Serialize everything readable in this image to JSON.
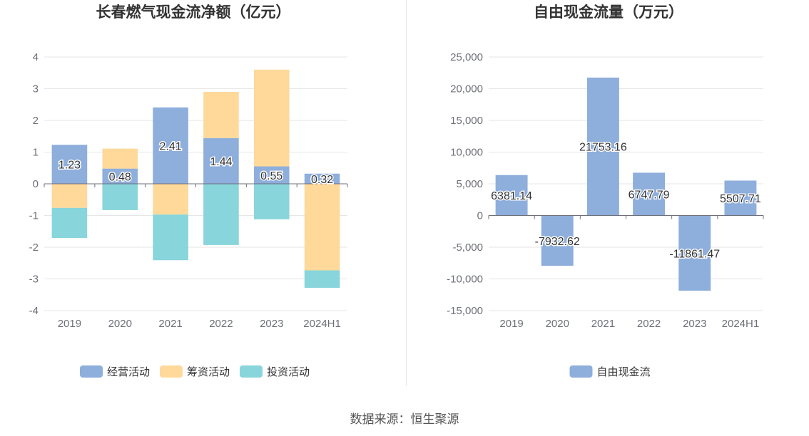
{
  "colors": {
    "operating": "#8eaedc",
    "financing": "#fed99a",
    "investing": "#88d5db",
    "free_cf": "#8eaedc",
    "grid": "#e6e6e6",
    "axis": "#6e7079",
    "tick_text": "#6e7079",
    "title": "#333333"
  },
  "chart_data": [
    {
      "type": "bar",
      "stacked": true,
      "title": "长春燃气现金流净额（亿元）",
      "categories": [
        "2019",
        "2020",
        "2021",
        "2022",
        "2023",
        "2024H1"
      ],
      "ylim": [
        -4,
        4
      ],
      "yticks": [
        "4",
        "3",
        "2",
        "1",
        "0",
        "-1",
        "-2",
        "-3",
        "-4"
      ],
      "series": [
        {
          "name": "经营活动",
          "key": "operating",
          "values": [
            1.23,
            0.48,
            2.41,
            1.44,
            0.55,
            0.32
          ],
          "labels": [
            "1.23",
            "0.48",
            "2.41",
            "1.44",
            "0.55",
            "0.32"
          ]
        },
        {
          "name": "筹资活动",
          "key": "financing",
          "values": [
            -0.76,
            0.63,
            -0.97,
            1.46,
            3.05,
            -2.73
          ]
        },
        {
          "name": "投资活动",
          "key": "investing",
          "values": [
            -0.95,
            -0.83,
            -1.44,
            -1.93,
            -1.12,
            -0.55
          ]
        }
      ],
      "legend": [
        "经营活动",
        "筹资活动",
        "投资活动"
      ]
    },
    {
      "type": "bar",
      "title": "自由现金流量（万元）",
      "categories": [
        "2019",
        "2020",
        "2021",
        "2022",
        "2023",
        "2024H1"
      ],
      "ylim": [
        -15000,
        25000
      ],
      "yticks": [
        "25,000",
        "20,000",
        "15,000",
        "10,000",
        "5,000",
        "0",
        "-5,000",
        "-10,000",
        "-15,000"
      ],
      "series": [
        {
          "name": "自由现金流",
          "key": "free_cf",
          "values": [
            6381.14,
            -7932.62,
            21753.16,
            6747.79,
            -11861.47,
            5507.71
          ],
          "labels": [
            "6381.14",
            "-7932.62",
            "21753.16",
            "6747.79",
            "-11861.47",
            "5507.71"
          ]
        }
      ],
      "legend": [
        "自由现金流"
      ]
    }
  ],
  "source": "数据来源：恒生聚源"
}
